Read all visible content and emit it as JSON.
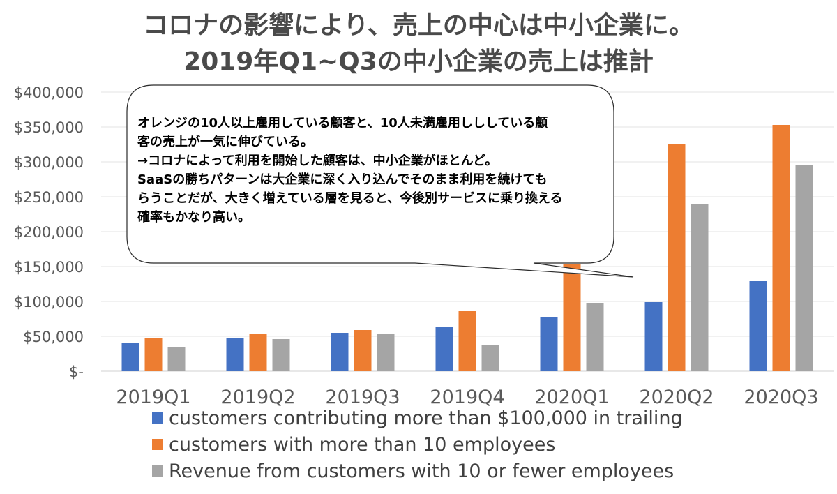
{
  "chart_data": {
    "type": "bar",
    "title_lines": [
      "コロナの影響により、売上の中心は中小企業に。",
      "2019年Q1~Q3の中小企業の売上は推計"
    ],
    "categories": [
      "2019Q1",
      "2019Q2",
      "2019Q3",
      "2019Q4",
      "2020Q1",
      "2020Q2",
      "2020Q3"
    ],
    "series": [
      {
        "name": "customers contributing more than $100,000 in trailing",
        "color": "#4472c4",
        "values": [
          41000,
          47000,
          55000,
          64000,
          77000,
          99000,
          129000
        ]
      },
      {
        "name": "customers with more than 10 employees",
        "color": "#ed7d31",
        "values": [
          47000,
          53000,
          59000,
          86000,
          153000,
          326000,
          353000
        ]
      },
      {
        "name": "Revenue from customers with 10 or fewer employees",
        "color": "#a5a5a5",
        "values": [
          35000,
          46000,
          53000,
          38000,
          98000,
          239000,
          295000
        ]
      }
    ],
    "ylim": [
      0,
      400000
    ],
    "yticks": [
      0,
      50000,
      100000,
      150000,
      200000,
      250000,
      300000,
      350000,
      400000
    ],
    "ytick_labels": [
      "$-",
      "$50,000",
      "$100,000",
      "$150,000",
      "$200,000",
      "$250,000",
      "$300,000",
      "$350,000",
      "$400,000"
    ],
    "grid": true,
    "legend_position": "bottom",
    "annotation_lines": [
      "オレンジの10人以上雇用している顧客と、10人未満雇用しししている顧",
      "客の売上が一気に伸びている。",
      "→コロナによって利用を開始した顧客は、中小企業がほとんど。",
      "SaaSの勝ちパターンは大企業に深く入り込んでそのまま利用を続けても",
      "らうことだが、大きく増えている層を見ると、今後別サービスに乗り換える",
      "確率もかなり高い。"
    ]
  }
}
